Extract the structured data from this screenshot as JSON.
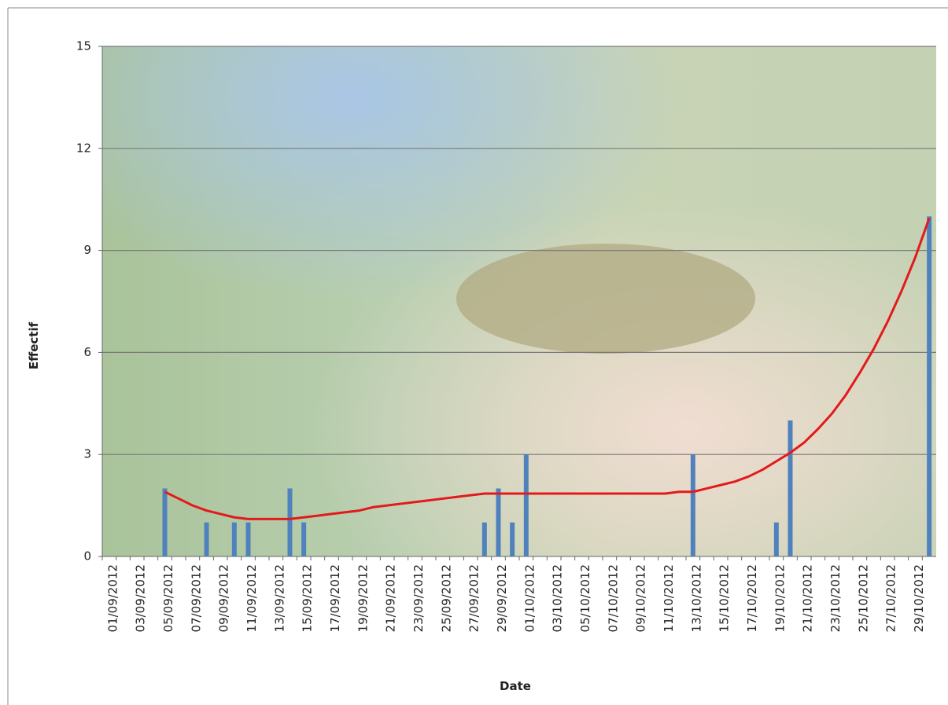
{
  "chart_data": {
    "type": "bar",
    "x_label": "Date",
    "y_label": "Effectif",
    "categories": [
      "01/09/2012",
      null,
      "03/09/2012",
      null,
      "05/09/2012",
      null,
      "07/09/2012",
      null,
      "09/09/2012",
      null,
      "11/09/2012",
      null,
      "13/09/2012",
      null,
      "15/09/2012",
      null,
      "17/09/2012",
      null,
      "19/09/2012",
      null,
      "21/09/2012",
      null,
      "23/09/2012",
      null,
      "25/09/2012",
      null,
      "27/09/2012",
      null,
      "29/09/2012",
      null,
      "01/10/2012",
      null,
      "03/10/2012",
      null,
      "05/10/2012",
      null,
      "07/10/2012",
      null,
      "09/10/2012",
      null,
      "11/10/2012",
      null,
      "13/10/2012",
      null,
      "15/10/2012",
      null,
      "17/10/2012",
      null,
      "19/10/2012",
      null,
      "21/10/2012",
      null,
      "23/10/2012",
      null,
      "25/10/2012",
      null,
      "27/10/2012",
      null,
      "29/10/2012",
      null
    ],
    "series": [
      {
        "color": "#4f81bd",
        "values": [
          0,
          0,
          0,
          0,
          2,
          0,
          0,
          1,
          0,
          1,
          1,
          0,
          0,
          2,
          1,
          0,
          0,
          0,
          0,
          0,
          0,
          0,
          0,
          0,
          0,
          0,
          0,
          1,
          2,
          1,
          3,
          0,
          0,
          0,
          0,
          0,
          0,
          0,
          0,
          0,
          0,
          0,
          3,
          0,
          0,
          0,
          0,
          0,
          1,
          4,
          0,
          0,
          0,
          0,
          0,
          0,
          0,
          0,
          0,
          10
        ]
      },
      {
        "type": "line",
        "color": "#e31a1c",
        "values": [
          null,
          null,
          null,
          null,
          1.9,
          1.7,
          1.5,
          1.35,
          1.25,
          1.15,
          1.1,
          1.1,
          1.1,
          1.1,
          1.15,
          1.2,
          1.25,
          1.3,
          1.35,
          1.45,
          1.5,
          1.55,
          1.6,
          1.65,
          1.7,
          1.75,
          1.8,
          1.85,
          1.85,
          1.85,
          1.85,
          1.85,
          1.85,
          1.85,
          1.85,
          1.85,
          1.85,
          1.85,
          1.85,
          1.85,
          1.85,
          1.9,
          1.9,
          2.0,
          2.1,
          2.2,
          2.35,
          2.55,
          2.8,
          3.05,
          3.35,
          3.75,
          4.2,
          4.75,
          5.4,
          6.1,
          6.9,
          7.8,
          8.8,
          9.95
        ]
      }
    ],
    "ylim": [
      0,
      15
    ],
    "yticks": [
      0,
      3,
      6,
      9,
      12,
      15
    ],
    "grid": true
  }
}
